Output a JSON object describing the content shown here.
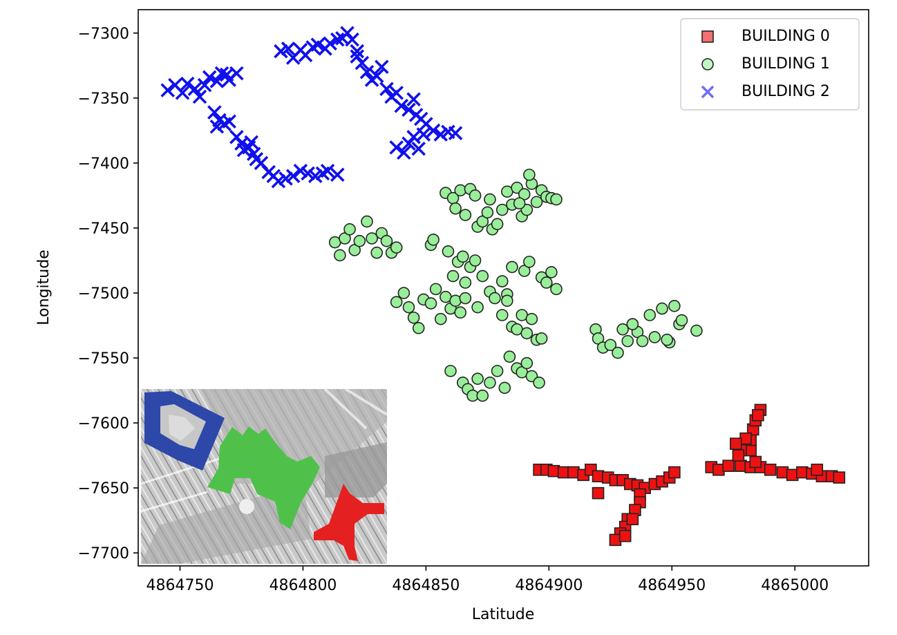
{
  "chart_data": {
    "type": "scatter",
    "title": "",
    "xlabel": "Latitude",
    "ylabel": "Longitude",
    "xlim": [
      4864733,
      4865030
    ],
    "ylim": [
      -7710,
      -7282
    ],
    "xticks": [
      {
        "value": 4864750,
        "label": "4864750"
      },
      {
        "value": 4864800,
        "label": "4864800"
      },
      {
        "value": 4864850,
        "label": "4864850"
      },
      {
        "value": 4864900,
        "label": "4864900"
      },
      {
        "value": 4864950,
        "label": "4864950"
      },
      {
        "value": 4865000,
        "label": "4865000"
      }
    ],
    "yticks": [
      {
        "value": -7300,
        "label": "−7300"
      },
      {
        "value": -7350,
        "label": "−7350"
      },
      {
        "value": -7400,
        "label": "−7400"
      },
      {
        "value": -7450,
        "label": "−7450"
      },
      {
        "value": -7500,
        "label": "−7500"
      },
      {
        "value": -7550,
        "label": "−7550"
      },
      {
        "value": -7600,
        "label": "−7600"
      },
      {
        "value": -7650,
        "label": "−7650"
      },
      {
        "value": -7700,
        "label": "−7700"
      }
    ],
    "grid": false,
    "legend_position": "top-right",
    "inset_image": "building-footprint-map",
    "series": [
      {
        "name": "BUILDING 0",
        "marker": "square",
        "color": "#ee1111",
        "edge": "#222222",
        "points": [
          [
            4864896,
            -7636
          ],
          [
            4864899,
            -7636
          ],
          [
            4864902,
            -7637
          ],
          [
            4864906,
            -7638
          ],
          [
            4864910,
            -7638
          ],
          [
            4864914,
            -7640
          ],
          [
            4864917,
            -7636
          ],
          [
            4864920,
            -7641
          ],
          [
            4864924,
            -7642
          ],
          [
            4864927,
            -7644
          ],
          [
            4864930,
            -7644
          ],
          [
            4864933,
            -7647
          ],
          [
            4864936,
            -7648
          ],
          [
            4864939,
            -7650
          ],
          [
            4864943,
            -7647
          ],
          [
            4864946,
            -7645
          ],
          [
            4864949,
            -7642
          ],
          [
            4864951,
            -7638
          ],
          [
            4864920,
            -7654
          ],
          [
            4864937,
            -7655
          ],
          [
            4864937,
            -7661
          ],
          [
            4864935,
            -7667
          ],
          [
            4864932,
            -7674
          ],
          [
            4864931,
            -7680
          ],
          [
            4864929,
            -7685
          ],
          [
            4864927,
            -7690
          ],
          [
            4864931,
            -7687
          ],
          [
            4864934,
            -7674
          ],
          [
            4864966,
            -7634
          ],
          [
            4864969,
            -7636
          ],
          [
            4864973,
            -7633
          ],
          [
            4864978,
            -7633
          ],
          [
            4864982,
            -7634
          ],
          [
            4864986,
            -7634
          ],
          [
            4864990,
            -7636
          ],
          [
            4864995,
            -7638
          ],
          [
            4864999,
            -7640
          ],
          [
            4865003,
            -7638
          ],
          [
            4865007,
            -7639
          ],
          [
            4865011,
            -7641
          ],
          [
            4865015,
            -7641
          ],
          [
            4865018,
            -7642
          ],
          [
            4864984,
            -7630
          ],
          [
            4864982,
            -7621
          ],
          [
            4864982,
            -7613
          ],
          [
            4864983,
            -7605
          ],
          [
            4864984,
            -7598
          ],
          [
            4864986,
            -7590
          ],
          [
            4864985,
            -7594
          ],
          [
            4864980,
            -7612
          ],
          [
            4864978,
            -7621
          ],
          [
            4864977,
            -7625
          ],
          [
            4864976,
            -7616
          ],
          [
            4865009,
            -7636
          ]
        ]
      },
      {
        "name": "BUILDING 1",
        "marker": "circle",
        "color": "#99ee99",
        "edge": "#222222",
        "points": [
          [
            4864813,
            -7461
          ],
          [
            4864815,
            -7471
          ],
          [
            4864817,
            -7458
          ],
          [
            4864819,
            -7451
          ],
          [
            4864821,
            -7467
          ],
          [
            4864823,
            -7460
          ],
          [
            4864826,
            -7445
          ],
          [
            4864828,
            -7458
          ],
          [
            4864830,
            -7469
          ],
          [
            4864832,
            -7454
          ],
          [
            4864834,
            -7460
          ],
          [
            4864836,
            -7469
          ],
          [
            4864838,
            -7465
          ],
          [
            4864852,
            -7463
          ],
          [
            4864853,
            -7459
          ],
          [
            4864858,
            -7423
          ],
          [
            4864861,
            -7427
          ],
          [
            4864862,
            -7435
          ],
          [
            4864864,
            -7421
          ],
          [
            4864866,
            -7440
          ],
          [
            4864868,
            -7420
          ],
          [
            4864870,
            -7425
          ],
          [
            4864871,
            -7449
          ],
          [
            4864873,
            -7445
          ],
          [
            4864875,
            -7438
          ],
          [
            4864876,
            -7428
          ],
          [
            4864877,
            -7451
          ],
          [
            4864879,
            -7447
          ],
          [
            4864881,
            -7436
          ],
          [
            4864883,
            -7422
          ],
          [
            4864885,
            -7432
          ],
          [
            4864887,
            -7419
          ],
          [
            4864889,
            -7441
          ],
          [
            4864891,
            -7436
          ],
          [
            4864893,
            -7416
          ],
          [
            4864895,
            -7430
          ],
          [
            4864897,
            -7421
          ],
          [
            4864899,
            -7426
          ],
          [
            4864901,
            -7427
          ],
          [
            4864903,
            -7428
          ],
          [
            4864892,
            -7409
          ],
          [
            4864890,
            -7424
          ],
          [
            4864888,
            -7431
          ],
          [
            4864859,
            -7468
          ],
          [
            4864861,
            -7487
          ],
          [
            4864863,
            -7476
          ],
          [
            4864865,
            -7472
          ],
          [
            4864866,
            -7492
          ],
          [
            4864868,
            -7480
          ],
          [
            4864870,
            -7475
          ],
          [
            4864873,
            -7487
          ],
          [
            4864881,
            -7491
          ],
          [
            4864883,
            -7501
          ],
          [
            4864885,
            -7480
          ],
          [
            4864890,
            -7483
          ],
          [
            4864892,
            -7476
          ],
          [
            4864897,
            -7488
          ],
          [
            4864899,
            -7492
          ],
          [
            4864901,
            -7484
          ],
          [
            4864903,
            -7497
          ],
          [
            4864838,
            -7507
          ],
          [
            4864841,
            -7500
          ],
          [
            4864843,
            -7511
          ],
          [
            4864845,
            -7519
          ],
          [
            4864847,
            -7527
          ],
          [
            4864849,
            -7505
          ],
          [
            4864852,
            -7508
          ],
          [
            4864854,
            -7497
          ],
          [
            4864856,
            -7520
          ],
          [
            4864858,
            -7503
          ],
          [
            4864860,
            -7512
          ],
          [
            4864862,
            -7506
          ],
          [
            4864864,
            -7515
          ],
          [
            4864866,
            -7504
          ],
          [
            4864871,
            -7511
          ],
          [
            4864876,
            -7499
          ],
          [
            4864878,
            -7504
          ],
          [
            4864881,
            -7517
          ],
          [
            4864883,
            -7506
          ],
          [
            4864885,
            -7526
          ],
          [
            4864887,
            -7528
          ],
          [
            4864889,
            -7517
          ],
          [
            4864891,
            -7531
          ],
          [
            4864893,
            -7520
          ],
          [
            4864895,
            -7536
          ],
          [
            4864897,
            -7535
          ],
          [
            4864860,
            -7560
          ],
          [
            4864865,
            -7569
          ],
          [
            4864867,
            -7574
          ],
          [
            4864869,
            -7579
          ],
          [
            4864871,
            -7566
          ],
          [
            4864873,
            -7579
          ],
          [
            4864876,
            -7569
          ],
          [
            4864879,
            -7560
          ],
          [
            4864882,
            -7573
          ],
          [
            4864884,
            -7549
          ],
          [
            4864887,
            -7558
          ],
          [
            4864889,
            -7561
          ],
          [
            4864891,
            -7554
          ],
          [
            4864893,
            -7564
          ],
          [
            4864896,
            -7569
          ],
          [
            4864919,
            -7528
          ],
          [
            4864920,
            -7535
          ],
          [
            4864922,
            -7542
          ],
          [
            4864925,
            -7540
          ],
          [
            4864928,
            -7546
          ],
          [
            4864930,
            -7528
          ],
          [
            4864932,
            -7537
          ],
          [
            4864934,
            -7524
          ],
          [
            4864936,
            -7530
          ],
          [
            4864938,
            -7537
          ],
          [
            4864941,
            -7517
          ],
          [
            4864943,
            -7534
          ],
          [
            4864946,
            -7512
          ],
          [
            4864949,
            -7538
          ],
          [
            4864951,
            -7510
          ],
          [
            4864953,
            -7524
          ],
          [
            4864954,
            -7521
          ],
          [
            4864960,
            -7529
          ],
          [
            4864948,
            -7536
          ],
          [
            4864934,
            -7524
          ]
        ]
      },
      {
        "name": "BUILDING 2",
        "marker": "x",
        "color": "#1010ee",
        "edge": "#1010ee",
        "points": [
          [
            4864745,
            -7344
          ],
          [
            4864748,
            -7340
          ],
          [
            4864751,
            -7346
          ],
          [
            4864753,
            -7339
          ],
          [
            4864756,
            -7343
          ],
          [
            4864758,
            -7349
          ],
          [
            4864760,
            -7340
          ],
          [
            4864762,
            -7334
          ],
          [
            4864765,
            -7337
          ],
          [
            4864767,
            -7331
          ],
          [
            4864769,
            -7332
          ],
          [
            4864770,
            -7336
          ],
          [
            4864773,
            -7331
          ],
          [
            4864764,
            -7361
          ],
          [
            4864766,
            -7367
          ],
          [
            4864768,
            -7370
          ],
          [
            4864770,
            -7368
          ],
          [
            4864765,
            -7372
          ],
          [
            4864773,
            -7380
          ],
          [
            4864775,
            -7385
          ],
          [
            4864778,
            -7388
          ],
          [
            4864780,
            -7393
          ],
          [
            4864783,
            -7400
          ],
          [
            4864786,
            -7407
          ],
          [
            4864788,
            -7410
          ],
          [
            4864790,
            -7414
          ],
          [
            4864793,
            -7412
          ],
          [
            4864796,
            -7410
          ],
          [
            4864799,
            -7406
          ],
          [
            4864802,
            -7408
          ],
          [
            4864805,
            -7410
          ],
          [
            4864808,
            -7408
          ],
          [
            4864810,
            -7406
          ],
          [
            4864814,
            -7409
          ],
          [
            4864776,
            -7390
          ],
          [
            4864779,
            -7384
          ],
          [
            4864781,
            -7397
          ],
          [
            4864791,
            -7314
          ],
          [
            4864794,
            -7312
          ],
          [
            4864796,
            -7319
          ],
          [
            4864799,
            -7313
          ],
          [
            4864801,
            -7317
          ],
          [
            4864804,
            -7311
          ],
          [
            4864806,
            -7309
          ],
          [
            4864809,
            -7312
          ],
          [
            4864811,
            -7308
          ],
          [
            4864814,
            -7305
          ],
          [
            4864816,
            -7304
          ],
          [
            4864818,
            -7300
          ],
          [
            4864820,
            -7305
          ],
          [
            4864822,
            -7314
          ],
          [
            4864822,
            -7318
          ],
          [
            4864824,
            -7323
          ],
          [
            4864826,
            -7330
          ],
          [
            4864828,
            -7336
          ],
          [
            4864830,
            -7333
          ],
          [
            4864832,
            -7326
          ],
          [
            4864834,
            -7343
          ],
          [
            4864836,
            -7349
          ],
          [
            4864838,
            -7346
          ],
          [
            4864840,
            -7356
          ],
          [
            4864843,
            -7359
          ],
          [
            4864845,
            -7351
          ],
          [
            4864846,
            -7363
          ],
          [
            4864848,
            -7366
          ],
          [
            4864850,
            -7370
          ],
          [
            4864853,
            -7375
          ],
          [
            4864856,
            -7378
          ],
          [
            4864859,
            -7376
          ],
          [
            4864862,
            -7377
          ],
          [
            4864838,
            -7388
          ],
          [
            4864841,
            -7392
          ],
          [
            4864843,
            -7385
          ],
          [
            4864845,
            -7380
          ],
          [
            4864847,
            -7389
          ],
          [
            4864849,
            -7378
          ]
        ]
      }
    ]
  }
}
